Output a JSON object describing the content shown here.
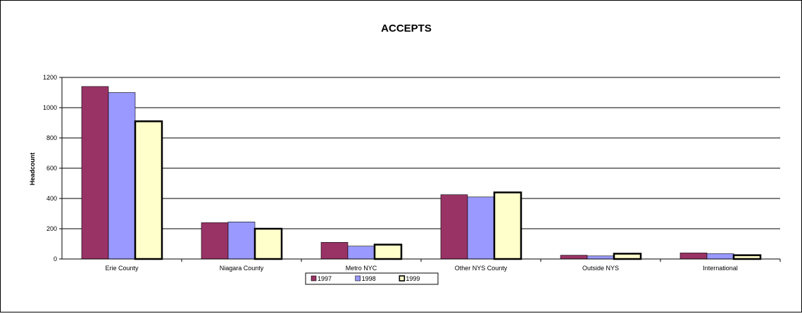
{
  "chart_data": {
    "type": "bar",
    "title": "ACCEPTS",
    "xlabel": "",
    "ylabel": "Headcount",
    "ylim": [
      0,
      1200
    ],
    "yticks": [
      0,
      200,
      400,
      600,
      800,
      1000,
      1200
    ],
    "grid": true,
    "legend_position": "bottom",
    "categories": [
      "Erie County",
      "Niagara County",
      "Metro NYC",
      "Other NYS County",
      "Outside NYS",
      "International"
    ],
    "series": [
      {
        "name": "1997",
        "color": "#993366",
        "values": [
          1140,
          240,
          110,
          425,
          25,
          40
        ]
      },
      {
        "name": "1998",
        "color": "#9999ff",
        "values": [
          1100,
          245,
          85,
          410,
          20,
          35
        ]
      },
      {
        "name": "1999",
        "color": "#ffffcc",
        "values": [
          910,
          200,
          95,
          440,
          35,
          25
        ]
      }
    ]
  }
}
